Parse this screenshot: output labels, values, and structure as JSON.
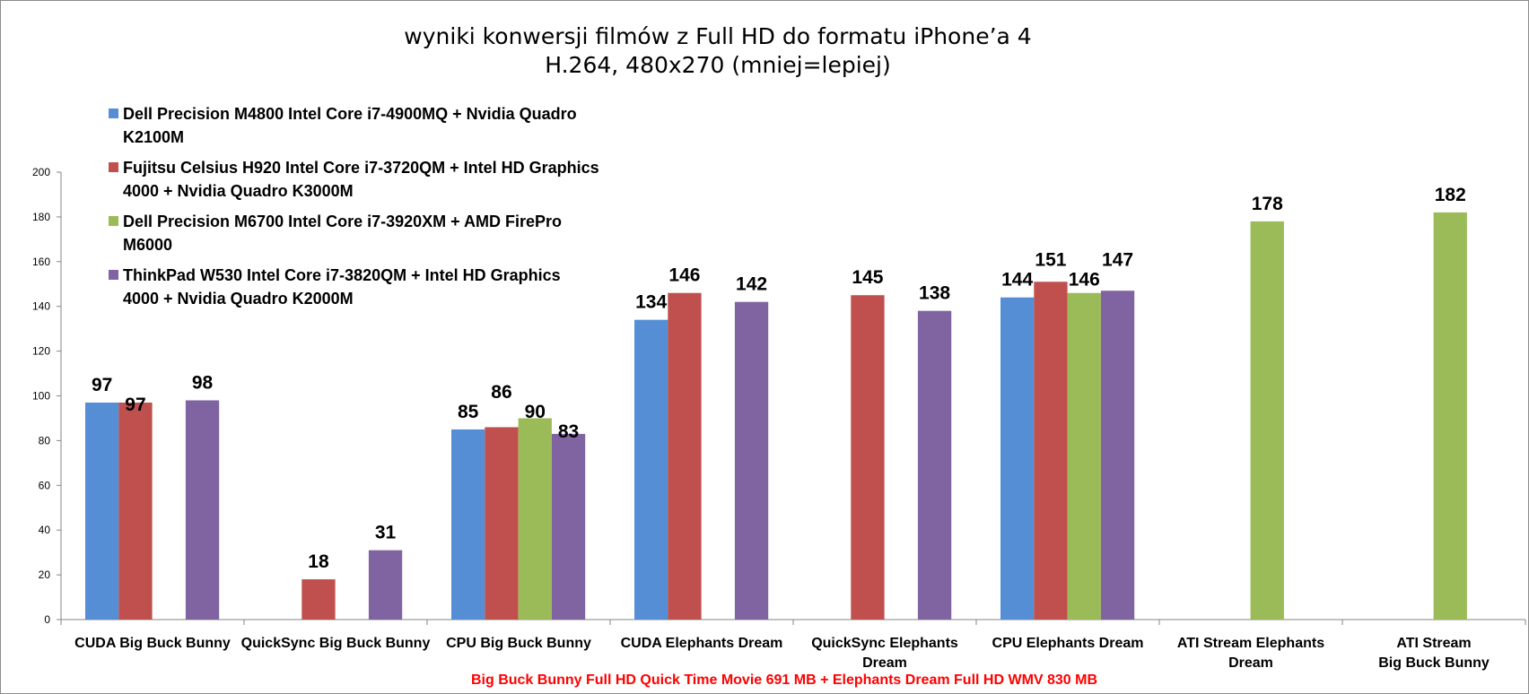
{
  "chart_data": {
    "type": "bar",
    "title": "wyniki konwersji filmów z Full HD do formatu iPhone’a 4",
    "subtitle": "H.264, 480x270 (mniej=lepiej)",
    "xlabel": "",
    "ylabel": "",
    "ylim": [
      0,
      200
    ],
    "yticks": [
      0,
      20,
      40,
      60,
      80,
      100,
      120,
      140,
      160,
      180,
      200
    ],
    "grid": false,
    "legend_position": "top-left",
    "categories": [
      [
        "CUDA Big Buck Bunny"
      ],
      [
        "QuickSync Big Buck Bunny"
      ],
      [
        "CPU Big Buck Bunny"
      ],
      [
        "CUDA Elephants Dream"
      ],
      [
        "QuickSync Elephants",
        "Dream"
      ],
      [
        "CPU Elephants Dream"
      ],
      [
        "ATI Stream Elephants",
        "Dream"
      ],
      [
        "ATI Stream",
        "Big Buck Bunny"
      ]
    ],
    "series": [
      {
        "name": "Dell Precision  M4800 Intel Core i7-4900MQ + Nvidia Quadro K2100M",
        "legend_lines": [
          "Dell Precision  M4800 Intel Core i7-4900MQ + Nvidia Quadro",
          "K2100M"
        ],
        "color": "#558ed5",
        "values": [
          97,
          null,
          85,
          134,
          null,
          144,
          null,
          null
        ]
      },
      {
        "name": "Fujitsu Celsius  H920 Intel Core i7-3720QM + Intel HD Graphics 4000 + Nvidia Quadro  K3000M",
        "legend_lines": [
          "Fujitsu Celsius  H920 Intel Core i7-3720QM + Intel HD Graphics",
          "4000 + Nvidia Quadro  K3000M"
        ],
        "color": "#c0504d",
        "values": [
          97,
          18,
          86,
          146,
          145,
          151,
          null,
          null
        ]
      },
      {
        "name": "Dell Precision  M6700 Intel Core i7-3920XM + AMD FirePro M6000",
        "legend_lines": [
          "Dell Precision  M6700 Intel Core i7-3920XM + AMD FirePro",
          "M6000"
        ],
        "color": "#9bbb59",
        "values": [
          null,
          null,
          90,
          null,
          null,
          146,
          178,
          182
        ]
      },
      {
        "name": "ThinkPad  W530 Intel Core i7-3820QM + Intel HD Graphics 4000 + Nvidia Quadro  K2000M",
        "legend_lines": [
          "ThinkPad  W530 Intel Core i7-3820QM + Intel HD Graphics",
          "4000 + Nvidia Quadro  K2000M"
        ],
        "color": "#8064a2",
        "values": [
          98,
          31,
          83,
          142,
          138,
          147,
          null,
          null
        ]
      }
    ],
    "footnote": "Big Buck Bunny Full HD Quick Time Movie 691 MB + Elephants Dream Full HD WMV 830 MB",
    "footnote_color": "#ff0000"
  }
}
